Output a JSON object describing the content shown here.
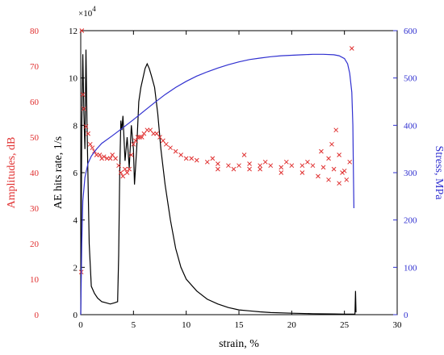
{
  "chart_data": {
    "type": "line",
    "title": "",
    "xlabel": "strain, %",
    "x_ticks": [
      "0",
      "5",
      "10",
      "15",
      "20",
      "25",
      "30"
    ],
    "xlim": [
      0,
      30
    ],
    "axes": {
      "hits": {
        "label": "AE hits rate, 1/s",
        "color": "#000000",
        "ylim": [
          0,
          120000
        ],
        "tick_labels": [
          "0",
          "2",
          "4",
          "6",
          "8",
          "10",
          "12"
        ],
        "multiplier": "×10",
        "multiplier_exp": "4"
      },
      "amplitude": {
        "label": "Amplitudes, dB",
        "color": "#e03030",
        "ylim": [
          0,
          80
        ],
        "tick_labels": [
          "0",
          "10",
          "20",
          "30",
          "40",
          "50",
          "60",
          "70",
          "80"
        ]
      },
      "stress": {
        "label": "Stress, MPa",
        "color": "#3030d0",
        "ylim": [
          0,
          600
        ],
        "tick_labels": [
          "0",
          "100",
          "200",
          "300",
          "400",
          "500",
          "600"
        ]
      }
    },
    "series": [
      {
        "axis": "hits",
        "style": "line",
        "color": "#000000",
        "points": [
          [
            0,
            0
          ],
          [
            0.1,
            80000
          ],
          [
            0.2,
            110000
          ],
          [
            0.3,
            85000
          ],
          [
            0.4,
            70000
          ],
          [
            0.5,
            112000
          ],
          [
            0.6,
            80000
          ],
          [
            0.8,
            30000
          ],
          [
            1.0,
            12000
          ],
          [
            1.3,
            9000
          ],
          [
            1.6,
            7000
          ],
          [
            2.0,
            5500
          ],
          [
            2.4,
            5000
          ],
          [
            2.8,
            4500
          ],
          [
            3.2,
            5000
          ],
          [
            3.5,
            5500
          ],
          [
            3.6,
            25000
          ],
          [
            3.7,
            60000
          ],
          [
            3.8,
            82000
          ],
          [
            3.9,
            78000
          ],
          [
            4.0,
            84000
          ],
          [
            4.2,
            65000
          ],
          [
            4.4,
            75000
          ],
          [
            4.6,
            62000
          ],
          [
            4.8,
            80000
          ],
          [
            5.0,
            70000
          ],
          [
            5.1,
            55000
          ],
          [
            5.3,
            70000
          ],
          [
            5.5,
            90000
          ],
          [
            5.7,
            96000
          ],
          [
            5.9,
            100000
          ],
          [
            6.1,
            104000
          ],
          [
            6.3,
            106000
          ],
          [
            6.5,
            104000
          ],
          [
            6.7,
            101000
          ],
          [
            7.0,
            96000
          ],
          [
            7.3,
            85000
          ],
          [
            7.6,
            70000
          ],
          [
            8.0,
            55000
          ],
          [
            8.5,
            40000
          ],
          [
            9.0,
            28000
          ],
          [
            9.5,
            20000
          ],
          [
            10,
            15000
          ],
          [
            11,
            10000
          ],
          [
            12,
            6500
          ],
          [
            13,
            4500
          ],
          [
            14,
            3000
          ],
          [
            15,
            2000
          ],
          [
            16,
            1600
          ],
          [
            17,
            1200
          ],
          [
            18,
            900
          ],
          [
            20,
            600
          ],
          [
            22,
            400
          ],
          [
            24,
            300
          ],
          [
            25,
            250
          ],
          [
            25.8,
            200
          ],
          [
            26.0,
            200
          ],
          [
            26.05,
            10000
          ],
          [
            26.1,
            1000
          ]
        ]
      },
      {
        "axis": "amplitude",
        "style": "scatter",
        "color": "#e03030",
        "points": [
          [
            0.05,
            12
          ],
          [
            0.1,
            80
          ],
          [
            0.2,
            62
          ],
          [
            0.3,
            58
          ],
          [
            0.5,
            53
          ],
          [
            0.7,
            51
          ],
          [
            0.9,
            48
          ],
          [
            1.1,
            47
          ],
          [
            1.3,
            46
          ],
          [
            1.5,
            45
          ],
          [
            1.8,
            45
          ],
          [
            2.0,
            44
          ],
          [
            2.2,
            44.5
          ],
          [
            2.5,
            44
          ],
          [
            2.8,
            44
          ],
          [
            3.0,
            45
          ],
          [
            3.3,
            44
          ],
          [
            3.6,
            42
          ],
          [
            3.8,
            40
          ],
          [
            4.0,
            39
          ],
          [
            4.2,
            41
          ],
          [
            4.4,
            40
          ],
          [
            4.6,
            41
          ],
          [
            4.8,
            45
          ],
          [
            5.0,
            48
          ],
          [
            5.2,
            49
          ],
          [
            5.4,
            50
          ],
          [
            5.6,
            50
          ],
          [
            5.8,
            50
          ],
          [
            6.0,
            51
          ],
          [
            6.3,
            52
          ],
          [
            6.6,
            52
          ],
          [
            6.9,
            51
          ],
          [
            7.2,
            51
          ],
          [
            7.5,
            50
          ],
          [
            7.8,
            49
          ],
          [
            8.1,
            48
          ],
          [
            8.5,
            47
          ],
          [
            9.0,
            46
          ],
          [
            9.5,
            45
          ],
          [
            10.0,
            44
          ],
          [
            10.5,
            44
          ],
          [
            11,
            43.5
          ],
          [
            12,
            43
          ],
          [
            13,
            42.5
          ],
          [
            14,
            42
          ],
          [
            15,
            42
          ],
          [
            16,
            42.5
          ],
          [
            17,
            42
          ],
          [
            18,
            42
          ],
          [
            19,
            41.5
          ],
          [
            20,
            42
          ],
          [
            21,
            42
          ],
          [
            22,
            42
          ],
          [
            23,
            41.5
          ],
          [
            24,
            41
          ],
          [
            25,
            40.5
          ],
          [
            25.5,
            43
          ],
          [
            25.7,
            75
          ],
          [
            12.5,
            44
          ],
          [
            15.5,
            45
          ],
          [
            17.5,
            43
          ],
          [
            19.5,
            43
          ],
          [
            21.5,
            43
          ],
          [
            23.5,
            44
          ],
          [
            24.5,
            45
          ],
          [
            24.2,
            52
          ],
          [
            23.8,
            48
          ],
          [
            22.8,
            46
          ],
          [
            24.8,
            40
          ],
          [
            25.2,
            38
          ],
          [
            24.5,
            37
          ],
          [
            23.5,
            38
          ],
          [
            22.5,
            39
          ],
          [
            21,
            40
          ],
          [
            19,
            40
          ],
          [
            17,
            41
          ],
          [
            16,
            41
          ],
          [
            14.5,
            41
          ],
          [
            13,
            41
          ]
        ]
      },
      {
        "axis": "stress",
        "style": "line",
        "color": "#3030d0",
        "points": [
          [
            0,
            0
          ],
          [
            0.1,
            150
          ],
          [
            0.2,
            240
          ],
          [
            0.4,
            290
          ],
          [
            0.7,
            320
          ],
          [
            1,
            335
          ],
          [
            1.5,
            350
          ],
          [
            2,
            362
          ],
          [
            3,
            378
          ],
          [
            4,
            395
          ],
          [
            5,
            412
          ],
          [
            6,
            430
          ],
          [
            7,
            448
          ],
          [
            8,
            465
          ],
          [
            9,
            480
          ],
          [
            10,
            493
          ],
          [
            11,
            504
          ],
          [
            12,
            513
          ],
          [
            13,
            521
          ],
          [
            14,
            528
          ],
          [
            15,
            534
          ],
          [
            16,
            539
          ],
          [
            17,
            542
          ],
          [
            18,
            545
          ],
          [
            19,
            547
          ],
          [
            20,
            548
          ],
          [
            21,
            549
          ],
          [
            22,
            550
          ],
          [
            23,
            550
          ],
          [
            24,
            549
          ],
          [
            24.5,
            547
          ],
          [
            25,
            541
          ],
          [
            25.3,
            530
          ],
          [
            25.5,
            510
          ],
          [
            25.7,
            470
          ],
          [
            25.8,
            400
          ],
          [
            25.85,
            300
          ],
          [
            25.9,
            225
          ]
        ]
      }
    ]
  }
}
